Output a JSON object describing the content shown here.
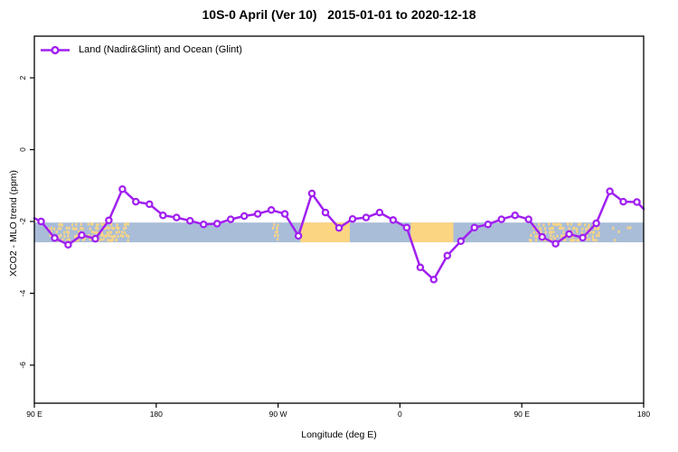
{
  "title": "10S-0 April (Ver 10)   2015-01-01 to 2020-12-18",
  "legend": {
    "label": "Land (Nadir&Glint) and Ocean (Glint)",
    "position": "top-left",
    "symbol": "line-with-circle-marker"
  },
  "colors": {
    "line": "#a020f0",
    "marker_fill": "#ffffff",
    "ocean_band": "#a9bdd8",
    "land_band": "#fcd583",
    "axis": "#000000",
    "background": "#ffffff"
  },
  "chart_data": {
    "type": "line",
    "title": "10S-0 April (Ver 10)   2015-01-01 to 2020-12-18",
    "xlabel": "Longitude (deg E)",
    "ylabel": "XCO2 - MLO trend (ppm)",
    "xlim": [
      90,
      540
    ],
    "ylim": [
      -7.06,
      3.16
    ],
    "grid": "off",
    "legend_position": "top-left",
    "x_ticks": [
      {
        "x": 90,
        "label": "90 E"
      },
      {
        "x": 180,
        "label": "180"
      },
      {
        "x": 270,
        "label": "90 W"
      },
      {
        "x": 360,
        "label": "0"
      },
      {
        "x": 450,
        "label": "90 E"
      },
      {
        "x": 540,
        "label": "180"
      }
    ],
    "y_ticks": [
      {
        "y": 2,
        "label": "2"
      },
      {
        "y": 0,
        "label": "0"
      },
      {
        "y": -2,
        "label": "-2"
      },
      {
        "y": -4,
        "label": "-4"
      },
      {
        "y": -6,
        "label": "-6"
      }
    ],
    "series": [
      {
        "name": "Land (Nadir&Glint) and Ocean (Glint)",
        "color": "#a020f0",
        "marker": "open-circle",
        "x": [
          95,
          105,
          115,
          125,
          135,
          145,
          155,
          165,
          175,
          185,
          195,
          205,
          215,
          225,
          235,
          245,
          255,
          265,
          275,
          285,
          295,
          305,
          315,
          325,
          335,
          345,
          355,
          365,
          375,
          385,
          395,
          405,
          415,
          425,
          435,
          445,
          455,
          465,
          475,
          485,
          495,
          505,
          515,
          525,
          535
        ],
        "y": [
          -2.0,
          -2.46,
          -2.65,
          -2.38,
          -2.48,
          -1.97,
          -1.1,
          -1.45,
          -1.52,
          -1.83,
          -1.89,
          -1.98,
          -2.08,
          -2.06,
          -1.94,
          -1.85,
          -1.79,
          -1.68,
          -1.79,
          -2.4,
          -1.22,
          -1.75,
          -2.18,
          -1.93,
          -1.89,
          -1.75,
          -1.96,
          -2.17,
          -3.28,
          -3.62,
          -2.95,
          -2.55,
          -2.17,
          -2.08,
          -1.94,
          -1.83,
          -1.94,
          -2.43,
          -2.62,
          -2.35,
          -2.45,
          -2.05,
          -1.16,
          -1.45,
          -1.46
        ]
      }
    ],
    "edge_stubs": {
      "left": {
        "x": 90,
        "y": -1.91
      },
      "right": {
        "x": 540,
        "y": -1.65
      }
    },
    "map_band": {
      "description": "latitude-strip map: ocean blue with land patches",
      "y_top": -2.03,
      "y_bottom": -2.58,
      "ocean_color": "#a9bdd8",
      "land_color": "#fcd583",
      "solid_patches": [
        [
          286.5,
          323
        ],
        [
          368,
          399.5
        ]
      ],
      "speckle_patches": [
        [
          100,
          136,
          0.4
        ],
        [
          136,
          150,
          0.78
        ],
        [
          150,
          160,
          0.22
        ],
        [
          160,
          167,
          0.1
        ],
        [
          266,
          269,
          0.45
        ],
        [
          455,
          484,
          0.45
        ],
        [
          484,
          507,
          0.6
        ],
        [
          512,
          533,
          0.1
        ]
      ]
    }
  }
}
